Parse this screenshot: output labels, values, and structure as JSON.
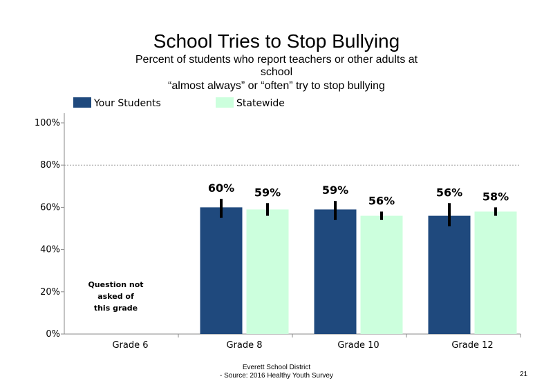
{
  "chart_data": {
    "type": "bar",
    "title": "School Tries to Stop Bullying",
    "subtitle": [
      "Percent of students  who report teachers or other adults at",
      "school",
      "“almost  always” or “often” try to stop bullying"
    ],
    "categories": [
      "Grade 6",
      "Grade 8",
      "Grade 10",
      "Grade 12"
    ],
    "series": [
      {
        "name": "Your Students",
        "color": "#1f497d",
        "values": [
          null,
          60,
          59,
          56
        ],
        "labels": [
          "",
          "60%",
          "59%",
          "56%"
        ],
        "error_low": [
          null,
          55,
          54,
          51
        ],
        "error_high": [
          null,
          64,
          63,
          62
        ]
      },
      {
        "name": "Statewide",
        "color": "#ccffdd",
        "values": [
          null,
          59,
          56,
          58
        ],
        "labels": [
          "",
          "59%",
          "56%",
          "58%"
        ],
        "error_low": [
          null,
          56,
          54,
          56
        ],
        "error_high": [
          null,
          62,
          58,
          60
        ]
      }
    ],
    "ylim": [
      0,
      100
    ],
    "yticks": [
      0,
      20,
      40,
      60,
      80,
      100
    ],
    "ytick_labels": [
      "0%",
      "20%",
      "40%",
      "60%",
      "80%",
      "100%"
    ],
    "gridlines": [
      80
    ],
    "legend_position": "top",
    "annotations": [
      {
        "category": "Grade 6",
        "lines": [
          "Question not",
          "asked of",
          "this grade"
        ]
      }
    ]
  },
  "footer": {
    "line1": "Everett School District",
    "line2": "- Source: 2016 Healthy  Youth Survey",
    "page_number": "21"
  }
}
